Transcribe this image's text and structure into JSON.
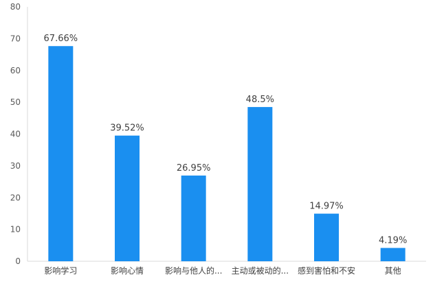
{
  "chart_data": {
    "type": "bar",
    "categories": [
      "影响学习",
      "影响心情",
      "影响与他人的...",
      "主动或被动的...",
      "感到害怕和不安",
      "其他"
    ],
    "values": [
      67.66,
      39.52,
      26.95,
      48.5,
      14.97,
      4.19
    ],
    "data_labels": [
      "67.66%",
      "39.52%",
      "26.95%",
      "48.5%",
      "14.97%",
      "4.19%"
    ],
    "title": "",
    "xlabel": "",
    "ylabel": "",
    "ylim": [
      0,
      80
    ],
    "yticks": [
      0,
      10,
      20,
      30,
      40,
      50,
      60,
      70,
      80
    ],
    "grid": false,
    "legend": "none",
    "colors": {
      "bar": "#1a8ff0",
      "axis": "#d9d9d9",
      "text": "#404040"
    }
  }
}
